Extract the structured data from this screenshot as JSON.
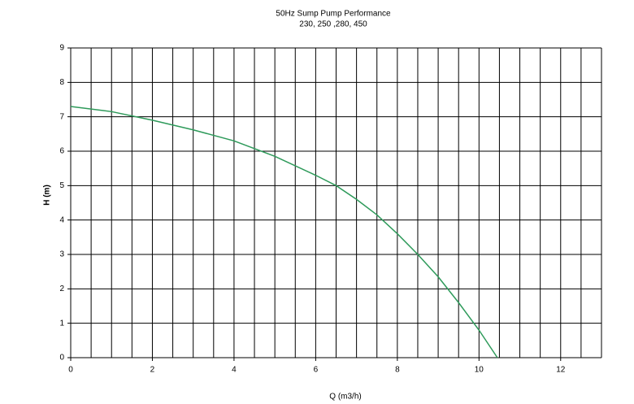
{
  "chart_data": {
    "type": "line",
    "title": "50Hz Sump Pump Performance",
    "subtitle": "230, 250 ,280, 450",
    "x_label": "Q (m3/h)",
    "y_label": "H (m)",
    "xlim": [
      0,
      13
    ],
    "ylim": [
      0,
      9
    ],
    "xticks": [
      0,
      2,
      4,
      6,
      8,
      10,
      12
    ],
    "yticks": [
      0,
      1,
      2,
      3,
      4,
      5,
      6,
      7,
      8,
      9
    ],
    "x_minor_grid": [
      0.5,
      1,
      1.5,
      2.5,
      3,
      3.5,
      4.5,
      5,
      5.5,
      6.5,
      7,
      7.5,
      8.5,
      9,
      9.5,
      10.5,
      11,
      11.5,
      12.5,
      13
    ],
    "grid": true,
    "series": [
      {
        "color": "#2e9a5a",
        "x": [
          0,
          1,
          2,
          3,
          4,
          5,
          6,
          6.5,
          7,
          7.5,
          8,
          8.5,
          9,
          9.5,
          10,
          10.45
        ],
        "values": [
          7.3,
          7.15,
          6.9,
          6.62,
          6.3,
          5.85,
          5.3,
          5.0,
          4.6,
          4.15,
          3.6,
          3.0,
          2.35,
          1.6,
          0.8,
          0
        ]
      }
    ]
  }
}
